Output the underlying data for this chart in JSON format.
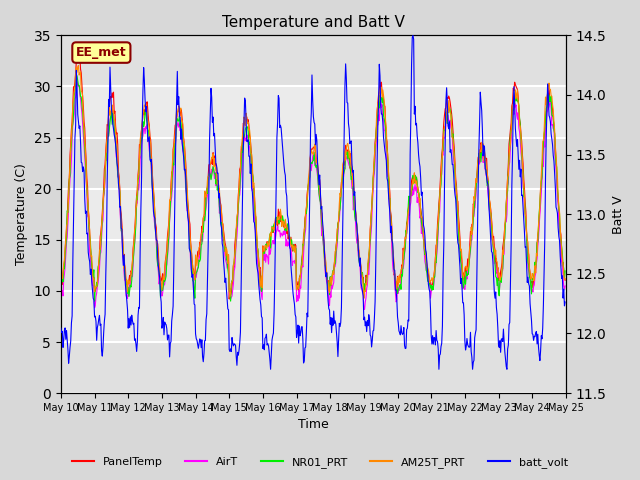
{
  "title": "Temperature and Batt V",
  "xlabel": "Time",
  "ylabel_left": "Temperature (C)",
  "ylabel_right": "Batt V",
  "annotation_text": "EE_met",
  "annotation_color": "#8B0000",
  "annotation_bg": "#FFFF99",
  "ylim_left": [
    0,
    35
  ],
  "ylim_right": [
    11.5,
    14.5
  ],
  "yticks_left": [
    0,
    5,
    10,
    15,
    20,
    25,
    30,
    35
  ],
  "yticks_right": [
    11.5,
    12.0,
    12.5,
    13.0,
    13.5,
    14.0,
    14.5
  ],
  "bg_color": "#D8D8D8",
  "plot_bg": "#EBEBEB",
  "grid_color": "white",
  "series": {
    "PanelTemp": {
      "color": "#FF0000",
      "lw": 0.8,
      "zorder": 3
    },
    "AirT": {
      "color": "#FF00FF",
      "lw": 0.8,
      "zorder": 4
    },
    "NR01_PRT": {
      "color": "#00EE00",
      "lw": 0.8,
      "zorder": 5
    },
    "AM25T_PRT": {
      "color": "#FF8800",
      "lw": 0.8,
      "zorder": 6
    },
    "batt_volt": {
      "color": "#0000FF",
      "lw": 0.8,
      "zorder": 7
    }
  },
  "legend_items": [
    "PanelTemp",
    "AirT",
    "NR01_PRT",
    "AM25T_PRT",
    "batt_volt"
  ],
  "legend_colors": [
    "#FF0000",
    "#FF00FF",
    "#00EE00",
    "#FF8800",
    "#0000FF"
  ],
  "figsize": [
    6.4,
    4.8
  ],
  "dpi": 100
}
